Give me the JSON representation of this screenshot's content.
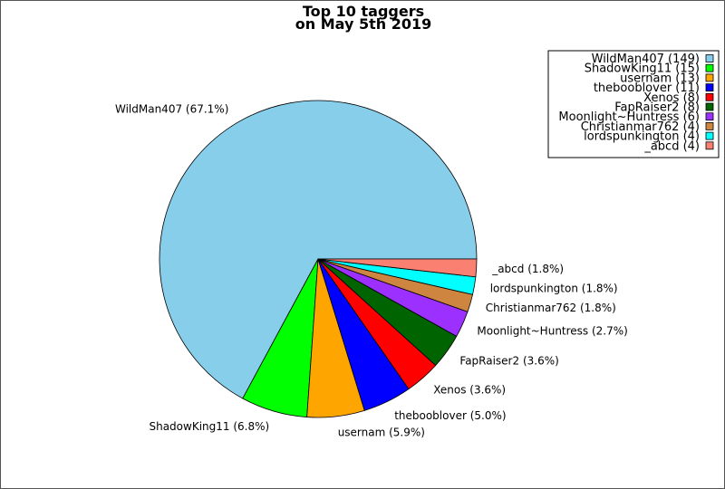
{
  "chart_data": {
    "type": "pie",
    "title": "Top 10 taggers",
    "subtitle": "on May 5th 2019",
    "legend_position": "top-right",
    "slices": [
      {
        "name": "WildMan407",
        "value": 149,
        "percent_label": "67.1%",
        "legend_label": "WildMan407 (149)",
        "color": "#87ceeb"
      },
      {
        "name": "ShadowKing11",
        "value": 15,
        "percent_label": "6.8%",
        "legend_label": "ShadowKing11 (15)",
        "color": "#00ff00"
      },
      {
        "name": "usernam",
        "value": 13,
        "percent_label": "5.9%",
        "legend_label": "usernam (13)",
        "color": "#ffa500"
      },
      {
        "name": "thebooblover",
        "value": 11,
        "percent_label": "5.0%",
        "legend_label": "thebooblover (11)",
        "color": "#0000ff"
      },
      {
        "name": "Xenos",
        "value": 8,
        "percent_label": "3.6%",
        "legend_label": "Xenos (8)",
        "color": "#ff0000"
      },
      {
        "name": "FapRaiser2",
        "value": 8,
        "percent_label": "3.6%",
        "legend_label": "FapRaiser2 (8)",
        "color": "#006400"
      },
      {
        "name": "Moonlight~Huntress",
        "value": 6,
        "percent_label": "2.7%",
        "legend_label": "Moonlight~Huntress (6)",
        "color": "#9b30ff"
      },
      {
        "name": "Christianmar762",
        "value": 4,
        "percent_label": "1.8%",
        "legend_label": "Christianmar762 (4)",
        "color": "#cd853f"
      },
      {
        "name": "lordspunkington",
        "value": 4,
        "percent_label": "1.8%",
        "legend_label": "lordspunkington (4)",
        "color": "#00ffff"
      },
      {
        "name": "_abcd",
        "value": 4,
        "percent_label": "1.8%",
        "legend_label": "_abcd (4)",
        "color": "#fa8072"
      }
    ]
  }
}
